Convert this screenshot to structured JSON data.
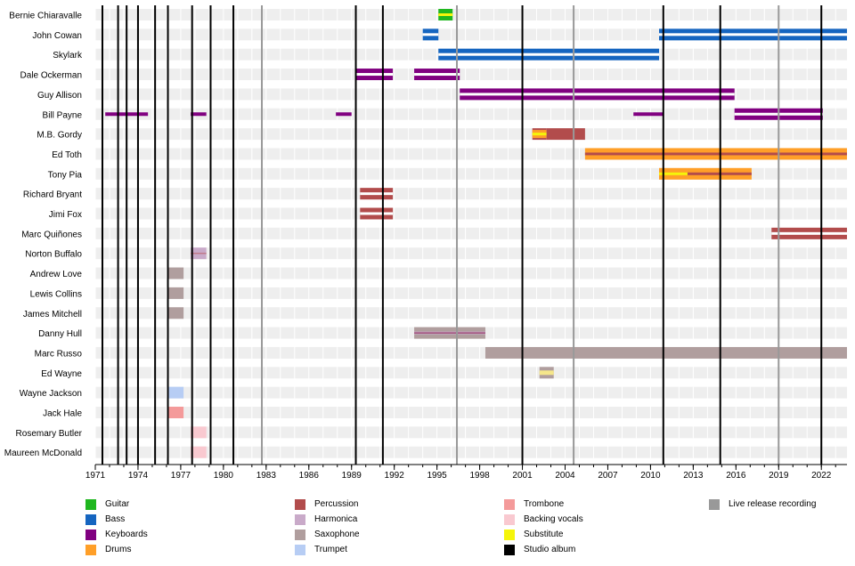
{
  "chart_data": {
    "type": "timeline",
    "xlim": [
      1971,
      2023.8
    ],
    "ticks": [
      "1971",
      "1974",
      "1977",
      "1980",
      "1983",
      "1986",
      "1989",
      "1992",
      "1995",
      "1998",
      "2001",
      "2004",
      "2007",
      "2010",
      "2013",
      "2016",
      "2019",
      "2022"
    ],
    "members": [
      "Bernie Chiaravalle",
      "John Cowan",
      "Skylark",
      "Dale Ockerman",
      "Guy Allison",
      "Bill Payne",
      "M.B. Gordy",
      "Ed Toth",
      "Tony Pia",
      "Richard Bryant",
      "Jimi Fox",
      "Marc Quiñones",
      "Norton Buffalo",
      "Andrew Love",
      "Lewis Collins",
      "James Mitchell",
      "Danny Hull",
      "Marc Russo",
      "Ed Wayne",
      "Wayne Jackson",
      "Jack Hale",
      "Rosemary Butler",
      "Maureen McDonald"
    ],
    "roles": {
      "Guitar": "#1fb71f",
      "Bass": "#1565c0",
      "Keyboards": "#800080",
      "Drums": "#ff9f28",
      "Percussion": "#b24c4c",
      "Harmonica": "#c9aac9",
      "Saxophone": "#b09e9e",
      "Trumpet": "#b7cdf4",
      "Trombone": "#f49a9a",
      "Backing vocals": "#f9c9d0",
      "Substitute": "#f5f50a",
      "Studio album": "#000000",
      "Live release recording": "#999999"
    },
    "studio_albums": [
      1971.5,
      1972.6,
      1973.2,
      1974.0,
      1975.2,
      1976.1,
      1977.8,
      1979.1,
      1980.7,
      1989.3,
      1991.2,
      2001.0,
      2010.9,
      2014.9,
      2022.0
    ],
    "live_recordings": [
      1982.7,
      1996.4,
      2004.6,
      2019.0
    ],
    "bars": [
      {
        "member": "Bernie Chiaravalle",
        "start": 1995.1,
        "end": 1996.1,
        "role": "Guitar",
        "stripe": "Substitute"
      },
      {
        "member": "John Cowan",
        "start": 1994.0,
        "end": 1995.1,
        "role": "Bass",
        "stripe": "bass_split"
      },
      {
        "member": "John Cowan",
        "start": 2010.6,
        "end": 2023.8,
        "role": "Bass",
        "stripe": "bass_split"
      },
      {
        "member": "Skylark",
        "start": 1995.1,
        "end": 2010.6,
        "role": "Bass",
        "stripe": "bass_split"
      },
      {
        "member": "Dale Ockerman",
        "start": 1989.3,
        "end": 1991.9,
        "role": "Keyboards",
        "stripe": "split"
      },
      {
        "member": "Dale Ockerman",
        "start": 1993.4,
        "end": 1996.6,
        "role": "Keyboards",
        "stripe": "split"
      },
      {
        "member": "Guy Allison",
        "start": 1996.6,
        "end": 2015.9,
        "role": "Keyboards",
        "stripe": "split"
      },
      {
        "member": "Bill Payne",
        "start": 1971.7,
        "end": 1974.7,
        "role": "Keyboards",
        "stripe": "thin"
      },
      {
        "member": "Bill Payne",
        "start": 1977.7,
        "end": 1978.8,
        "role": "Keyboards",
        "stripe": "thin"
      },
      {
        "member": "Bill Payne",
        "start": 1987.9,
        "end": 1989.0,
        "role": "Keyboards",
        "stripe": "thin"
      },
      {
        "member": "Bill Payne",
        "start": 2008.8,
        "end": 2010.9,
        "role": "Keyboards",
        "stripe": "thin"
      },
      {
        "member": "Bill Payne",
        "start": 2015.9,
        "end": 2022.1,
        "role": "Keyboards",
        "stripe": "split"
      },
      {
        "member": "M.B. Gordy",
        "start": 2001.7,
        "end": 2002.7,
        "role": "Percussion",
        "stripe": "Substitute_drums"
      },
      {
        "member": "M.B. Gordy",
        "start": 2002.7,
        "end": 2005.4,
        "role": "Percussion",
        "stripe": "none"
      },
      {
        "member": "Ed Toth",
        "start": 2005.4,
        "end": 2023.8,
        "role": "Drums",
        "stripe": "Percussion"
      },
      {
        "member": "Tony Pia",
        "start": 2010.6,
        "end": 2012.6,
        "role": "Drums",
        "stripe": "Substitute"
      },
      {
        "member": "Tony Pia",
        "start": 2012.6,
        "end": 2017.1,
        "role": "Drums",
        "stripe": "Percussion"
      },
      {
        "member": "Richard Bryant",
        "start": 1989.6,
        "end": 1991.9,
        "role": "Percussion",
        "stripe": "split"
      },
      {
        "member": "Jimi Fox",
        "start": 1989.6,
        "end": 1991.9,
        "role": "Percussion",
        "stripe": "split"
      },
      {
        "member": "Marc Quiñones",
        "start": 2018.5,
        "end": 2023.8,
        "role": "Percussion",
        "stripe": "split"
      },
      {
        "member": "Norton Buffalo",
        "start": 1977.7,
        "end": 1978.8,
        "role": "Harmonica",
        "stripe": "Percussion_thin"
      },
      {
        "member": "Andrew Love",
        "start": 1976.1,
        "end": 1977.2,
        "role": "Saxophone",
        "stripe": "none"
      },
      {
        "member": "Lewis Collins",
        "start": 1976.1,
        "end": 1977.2,
        "role": "Saxophone",
        "stripe": "none"
      },
      {
        "member": "James Mitchell",
        "start": 1976.1,
        "end": 1977.2,
        "role": "Saxophone",
        "stripe": "none"
      },
      {
        "member": "Danny Hull",
        "start": 1993.4,
        "end": 1998.4,
        "role": "Saxophone",
        "stripe": "Harmonica_split"
      },
      {
        "member": "Marc Russo",
        "start": 1998.4,
        "end": 2023.8,
        "role": "Saxophone",
        "stripe": "none"
      },
      {
        "member": "Ed Wayne",
        "start": 2002.2,
        "end": 2003.2,
        "role": "Saxophone",
        "stripe": "Substitute_pale"
      },
      {
        "member": "Wayne Jackson",
        "start": 1976.1,
        "end": 1977.2,
        "role": "Trumpet",
        "stripe": "none"
      },
      {
        "member": "Jack Hale",
        "start": 1976.1,
        "end": 1977.2,
        "role": "Trombone",
        "stripe": "none"
      },
      {
        "member": "Rosemary Butler",
        "start": 1977.7,
        "end": 1978.8,
        "role": "Backing vocals",
        "stripe": "none"
      },
      {
        "member": "Maureen McDonald",
        "start": 1977.7,
        "end": 1978.8,
        "role": "Backing vocals",
        "stripe": "none"
      }
    ]
  },
  "legend": [
    {
      "label": "Guitar",
      "color": "#1fb71f"
    },
    {
      "label": "Bass",
      "color": "#1565c0"
    },
    {
      "label": "Keyboards",
      "color": "#800080"
    },
    {
      "label": "Drums",
      "color": "#ff9f28"
    },
    {
      "label": "Percussion",
      "color": "#b24c4c"
    },
    {
      "label": "Harmonica",
      "color": "#c9aac9"
    },
    {
      "label": "Saxophone",
      "color": "#b09e9e"
    },
    {
      "label": "Trumpet",
      "color": "#b7cdf4"
    },
    {
      "label": "Trombone",
      "color": "#f49a9a"
    },
    {
      "label": "Backing vocals",
      "color": "#f9c9d0"
    },
    {
      "label": "Substitute",
      "color": "#f5f50a"
    },
    {
      "label": "Studio album",
      "color": "#000000"
    },
    {
      "label": "Live release recording",
      "color": "#999999"
    }
  ]
}
